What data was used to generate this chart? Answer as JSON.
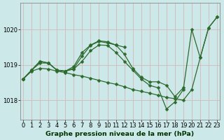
{
  "title": "Graphe pression niveau de la mer (hPa)",
  "bg_color": "#cce8e8",
  "grid_color": "#b8d8d8",
  "line_color": "#2d6a2d",
  "ylim": [
    1017.45,
    1020.75
  ],
  "xlim": [
    -0.3,
    23.3
  ],
  "yticks": [
    1018,
    1019,
    1020
  ],
  "xtick_labels": [
    "0",
    "1",
    "2",
    "3",
    "4",
    "5",
    "6",
    "7",
    "8",
    "9",
    "10",
    "11",
    "12",
    "13",
    "14",
    "15",
    "16",
    "17",
    "18",
    "19",
    "20",
    "21",
    "22",
    "23"
  ],
  "tick_fontsize": 6.0,
  "title_fontsize": 6.8,
  "lw": 0.9,
  "ms": 2.5,
  "series": [
    {
      "x": [
        0,
        1,
        2,
        3,
        4,
        5,
        6,
        7,
        8,
        9,
        10,
        11,
        12
      ],
      "y": [
        1018.6,
        1018.85,
        1019.05,
        1019.05,
        1018.85,
        1018.82,
        1018.95,
        1019.35,
        1019.56,
        1019.68,
        1019.65,
        1019.56,
        1019.5
      ]
    },
    {
      "x": [
        0,
        1,
        2,
        3,
        4,
        5,
        6,
        7,
        8,
        9,
        10,
        11,
        12,
        13,
        14,
        15,
        16,
        17,
        18,
        19,
        20,
        21,
        22,
        23
      ],
      "y": [
        1018.6,
        1018.82,
        1018.9,
        1018.88,
        1018.82,
        1018.78,
        1018.72,
        1018.68,
        1018.62,
        1018.56,
        1018.5,
        1018.45,
        1018.38,
        1018.3,
        1018.25,
        1018.2,
        1018.14,
        1018.08,
        1018.04,
        1018.0,
        1018.3,
        1019.2,
        1020.05,
        1020.35
      ]
    },
    {
      "x": [
        0,
        1,
        2,
        3,
        4,
        5,
        6,
        7,
        8,
        9,
        10,
        11,
        12,
        13,
        14,
        15,
        16,
        17,
        18,
        19,
        20,
        21,
        22,
        23
      ],
      "y": [
        1018.6,
        1018.85,
        1019.1,
        1019.05,
        1018.85,
        1018.82,
        1018.88,
        1019.1,
        1019.4,
        1019.56,
        1019.55,
        1019.35,
        1019.1,
        1018.85,
        1018.6,
        1018.42,
        1018.35,
        1017.75,
        1017.95,
        1018.3,
        1020.0,
        1019.2,
        1020.05,
        1020.35
      ]
    },
    {
      "x": [
        0,
        1,
        2,
        3,
        4,
        5,
        6,
        7,
        8,
        9,
        10,
        11,
        12,
        13,
        14,
        15,
        16,
        17,
        18,
        19
      ],
      "y": [
        1018.6,
        1018.85,
        1019.1,
        1019.05,
        1018.85,
        1018.82,
        1018.9,
        1019.25,
        1019.55,
        1019.66,
        1019.62,
        1019.56,
        1019.3,
        1018.9,
        1018.65,
        1018.52,
        1018.52,
        1018.42,
        1018.1,
        1018.35
      ]
    }
  ]
}
